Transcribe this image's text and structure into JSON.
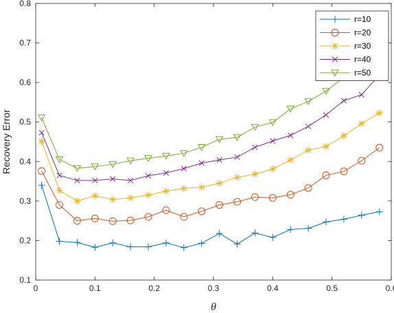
{
  "chart_data": {
    "type": "line",
    "xlabel": "θ",
    "ylabel": "Recovery Error",
    "xlim": [
      0,
      0.6
    ],
    "ylim": [
      0.1,
      0.8
    ],
    "xticks": [
      0,
      0.1,
      0.2,
      0.3,
      0.4,
      0.5,
      0.6
    ],
    "yticks": [
      0.1,
      0.2,
      0.3,
      0.4,
      0.5,
      0.6,
      0.7,
      0.8
    ],
    "grid": false,
    "legend_position": "top-right",
    "x": [
      0.01,
      0.04,
      0.07,
      0.1,
      0.13,
      0.16,
      0.19,
      0.22,
      0.25,
      0.28,
      0.31,
      0.34,
      0.37,
      0.4,
      0.43,
      0.46,
      0.49,
      0.52,
      0.55,
      0.58
    ],
    "series": [
      {
        "name": "r=10",
        "color": "#0072BD",
        "marker": "plus",
        "values": [
          0.34,
          0.198,
          0.195,
          0.183,
          0.194,
          0.184,
          0.184,
          0.194,
          0.182,
          0.193,
          0.218,
          0.191,
          0.219,
          0.208,
          0.228,
          0.231,
          0.247,
          0.254,
          0.264,
          0.273
        ]
      },
      {
        "name": "r=20",
        "color": "#D95319",
        "marker": "circle",
        "values": [
          0.376,
          0.29,
          0.25,
          0.256,
          0.249,
          0.251,
          0.26,
          0.277,
          0.26,
          0.274,
          0.29,
          0.298,
          0.31,
          0.308,
          0.316,
          0.333,
          0.365,
          0.375,
          0.402,
          0.435
        ]
      },
      {
        "name": "r=30",
        "color": "#EDB120",
        "marker": "star",
        "values": [
          0.451,
          0.327,
          0.3,
          0.313,
          0.304,
          0.308,
          0.315,
          0.325,
          0.332,
          0.335,
          0.345,
          0.36,
          0.368,
          0.381,
          0.404,
          0.429,
          0.438,
          0.465,
          0.496,
          0.523
        ]
      },
      {
        "name": "r=40",
        "color": "#7E2F8E",
        "marker": "x",
        "values": [
          0.473,
          0.365,
          0.352,
          0.352,
          0.356,
          0.352,
          0.364,
          0.371,
          0.382,
          0.396,
          0.404,
          0.411,
          0.436,
          0.452,
          0.466,
          0.489,
          0.518,
          0.554,
          0.569,
          0.619
        ]
      },
      {
        "name": "r=50",
        "color": "#77AC30",
        "marker": "triangle-down",
        "values": [
          0.511,
          0.405,
          0.383,
          0.387,
          0.393,
          0.402,
          0.408,
          0.414,
          0.421,
          0.436,
          0.456,
          0.461,
          0.487,
          0.499,
          0.533,
          0.552,
          0.578,
          0.613,
          0.661,
          0.72
        ]
      }
    ]
  }
}
